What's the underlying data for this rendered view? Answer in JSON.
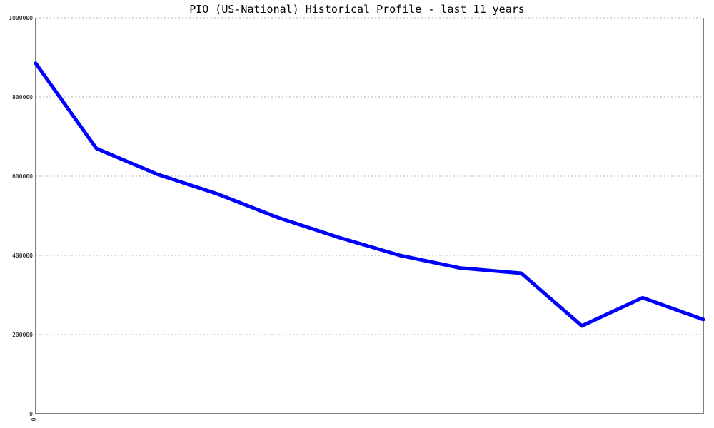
{
  "chart_data": {
    "type": "line",
    "title": "PIO (US-National) Historical Profile - last 11 years",
    "xlabel": "",
    "ylabel": "",
    "x_tick_labels": [
      "0"
    ],
    "y_tick_labels": [
      "1000000",
      "800000",
      "600000",
      "400000",
      "200000",
      "0"
    ],
    "ylim": [
      0,
      1000000
    ],
    "grid": true,
    "line_color": "#0000ff",
    "series": [
      {
        "values": [
          885000,
          670000,
          605000,
          555000,
          495000,
          445000,
          400000,
          368000,
          355000,
          222000,
          293000,
          238000
        ]
      }
    ]
  }
}
